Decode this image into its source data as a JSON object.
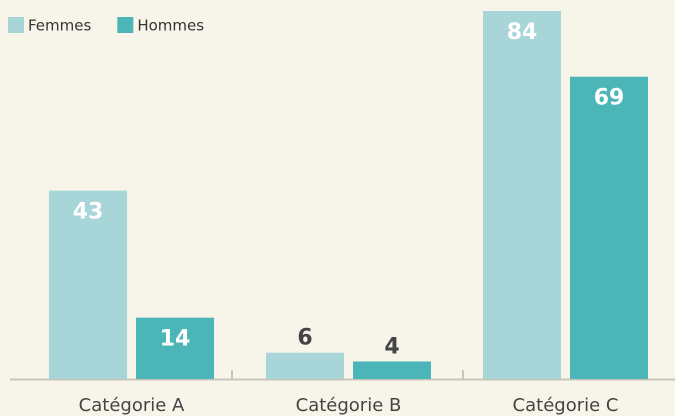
{
  "chart_data": {
    "type": "bar",
    "categories": [
      "Catégorie A",
      "Catégorie B",
      "Catégorie C"
    ],
    "series": [
      {
        "name": "Femmes",
        "color": "#a8d5d8",
        "values": [
          43,
          6,
          84
        ]
      },
      {
        "name": "Hommes",
        "color": "#4bb5b7",
        "values": [
          14,
          4,
          69
        ]
      }
    ],
    "legend": "top-left"
  }
}
